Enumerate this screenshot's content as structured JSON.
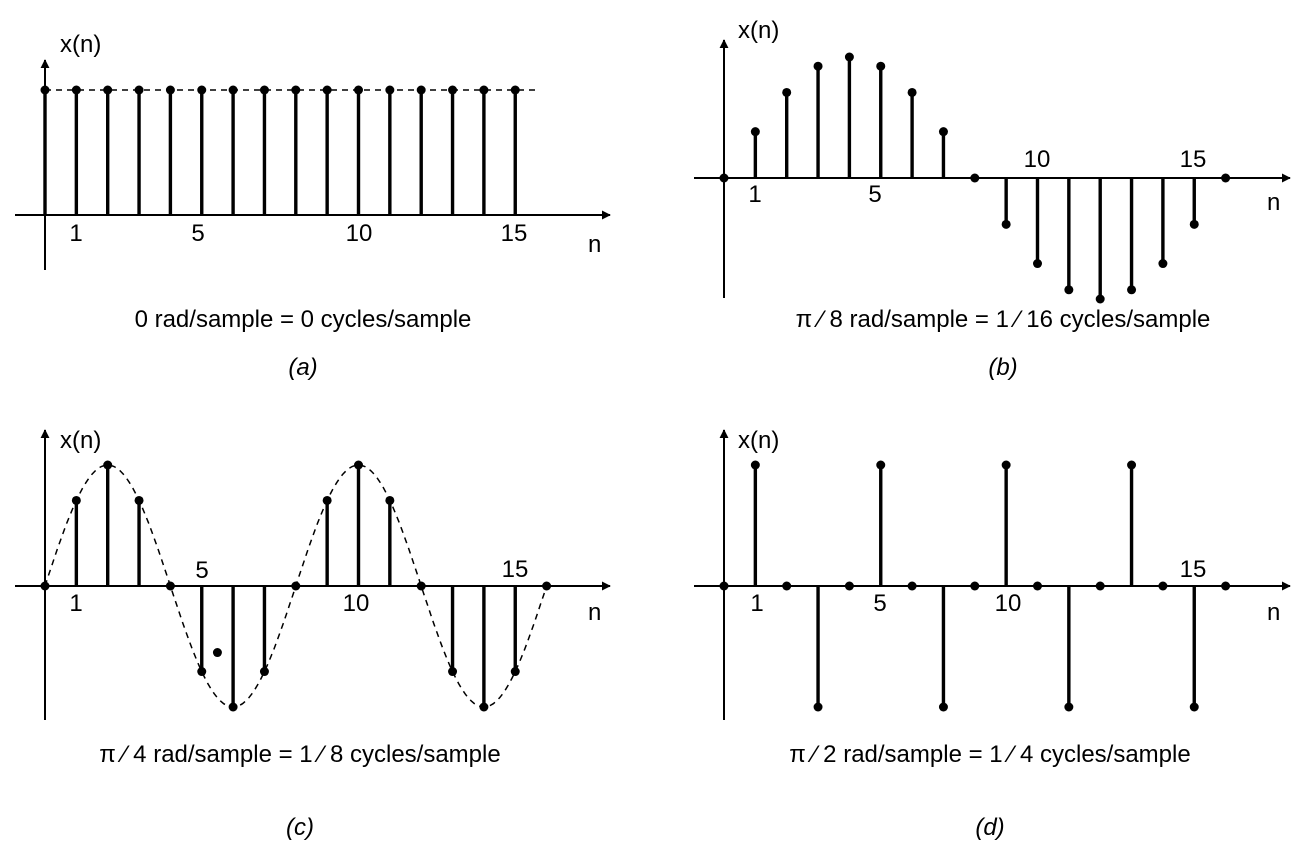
{
  "chart_data": [
    {
      "type": "stem",
      "panel_label": "(a)",
      "caption": "0 rad/sample = 0 cycles/sample",
      "ylabel": "x(n)",
      "xlabel": "n",
      "x_ticks": [
        "1",
        "5",
        "10",
        "15"
      ],
      "x": [
        0,
        1,
        2,
        3,
        4,
        5,
        6,
        7,
        8,
        9,
        10,
        11,
        12,
        13,
        14,
        15
      ],
      "values": [
        1,
        1,
        1,
        1,
        1,
        1,
        1,
        1,
        1,
        1,
        1,
        1,
        1,
        1,
        1,
        1
      ],
      "envelope": "constant",
      "xlim": [
        0,
        15
      ],
      "ylim": [
        -0.5,
        1.2
      ]
    },
    {
      "type": "stem",
      "panel_label": "(b)",
      "caption": "π ⁄ 8 rad/sample = 1 ⁄ 16 cycles/sample",
      "ylabel": "x(n)",
      "xlabel": "n",
      "x_ticks": [
        "1",
        "5",
        "10",
        "15"
      ],
      "x": [
        0,
        1,
        2,
        3,
        4,
        5,
        6,
        7,
        8,
        9,
        10,
        11,
        12,
        13,
        14,
        15,
        16
      ],
      "values": [
        0,
        0.383,
        0.707,
        0.924,
        1,
        0.924,
        0.707,
        0.383,
        0,
        -0.383,
        -0.707,
        -0.924,
        -1,
        -0.924,
        -0.707,
        -0.383,
        0
      ],
      "envelope": "none",
      "xlim": [
        0,
        16
      ],
      "ylim": [
        -1,
        1
      ]
    },
    {
      "type": "stem",
      "panel_label": "(c)",
      "caption": "π ⁄ 4 rad/sample = 1 ⁄ 8 cycles/sample",
      "ylabel": "x(n)",
      "xlabel": "n",
      "x_ticks": [
        "1",
        "5",
        "10",
        "15"
      ],
      "x": [
        0,
        1,
        2,
        3,
        4,
        5,
        6,
        7,
        8,
        9,
        10,
        11,
        12,
        13,
        14,
        15,
        16
      ],
      "values": [
        0,
        0.707,
        1,
        0.707,
        0,
        -0.707,
        -1,
        -0.707,
        0,
        0.707,
        1,
        0.707,
        0,
        -0.707,
        -1,
        -0.707,
        0
      ],
      "stray_point": {
        "x": 5.5,
        "y": -0.55
      },
      "envelope": "sine",
      "xlim": [
        0,
        16
      ],
      "ylim": [
        -1,
        1
      ]
    },
    {
      "type": "stem",
      "panel_label": "(d)",
      "caption": "π ⁄ 2 rad/sample = 1 ⁄ 4 cycles/sample",
      "ylabel": "x(n)",
      "xlabel": "n",
      "x_ticks": [
        "1",
        "5",
        "10",
        "15"
      ],
      "x": [
        0,
        1,
        2,
        3,
        4,
        5,
        6,
        7,
        8,
        9,
        10,
        11,
        12,
        13,
        14,
        15,
        16
      ],
      "values": [
        0,
        1,
        0,
        -1,
        0,
        1,
        0,
        -1,
        0,
        1,
        0,
        -1,
        0,
        1,
        0,
        -1,
        0
      ],
      "envelope": "none",
      "xlim": [
        0,
        16
      ],
      "ylim": [
        -1,
        1
      ]
    }
  ]
}
